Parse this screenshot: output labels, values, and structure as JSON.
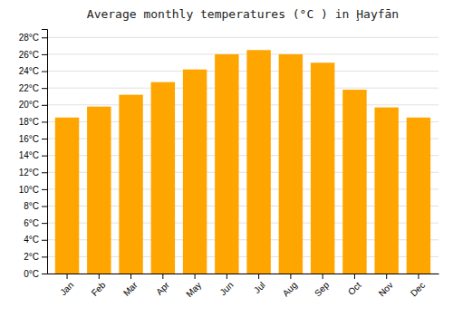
{
  "chart_data": {
    "type": "bar",
    "title": "Average monthly temperatures (°C ) in Ḩayfān",
    "categories": [
      "Jan",
      "Feb",
      "Mar",
      "Apr",
      "May",
      "Jun",
      "Jul",
      "Aug",
      "Sep",
      "Oct",
      "Nov",
      "Dec"
    ],
    "values": [
      18.5,
      19.8,
      21.2,
      22.7,
      24.2,
      26.0,
      26.5,
      26.0,
      25.0,
      21.8,
      19.7,
      18.5
    ],
    "color": "#FFA500",
    "ylim": [
      0,
      29
    ],
    "yticks": [
      {
        "value": 0,
        "label": "0°C"
      },
      {
        "value": 2,
        "label": "2°C"
      },
      {
        "value": 4,
        "label": "4°C"
      },
      {
        "value": 6,
        "label": "6°C"
      },
      {
        "value": 8,
        "label": "8°C"
      },
      {
        "value": 10,
        "label": "10°C"
      },
      {
        "value": 12,
        "label": "12°C"
      },
      {
        "value": 14,
        "label": "14°C"
      },
      {
        "value": 16,
        "label": "16°C"
      },
      {
        "value": 18,
        "label": "18°C"
      },
      {
        "value": 20,
        "label": "20°C"
      },
      {
        "value": 22,
        "label": "22°C"
      },
      {
        "value": 24,
        "label": "24°C"
      },
      {
        "value": 26,
        "label": "26°C"
      },
      {
        "value": 28,
        "label": "28°C"
      }
    ],
    "grid": true
  }
}
